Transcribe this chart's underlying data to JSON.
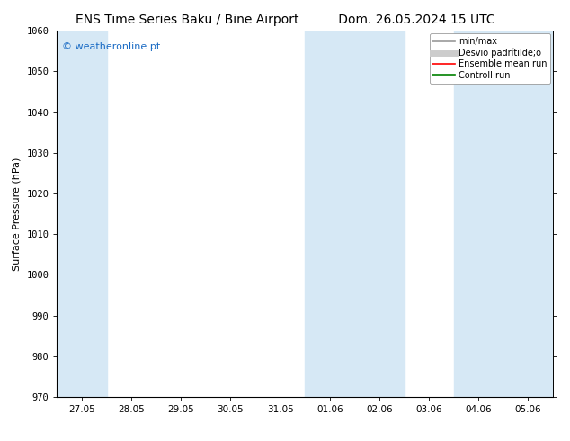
{
  "title_left": "ENS Time Series Baku / Bine Airport",
  "title_right": "Dom. 26.05.2024 15 UTC",
  "ylabel": "Surface Pressure (hPa)",
  "ylim": [
    970,
    1060
  ],
  "yticks": [
    970,
    980,
    990,
    1000,
    1010,
    1020,
    1030,
    1040,
    1050,
    1060
  ],
  "xtick_labels": [
    "27.05",
    "28.05",
    "29.05",
    "30.05",
    "31.05",
    "01.06",
    "02.06",
    "03.06",
    "04.06",
    "05.06"
  ],
  "shaded_columns": [
    0,
    5,
    6,
    8,
    9
  ],
  "shaded_color": "#d6e8f5",
  "legend_entries": [
    {
      "label": "min/max",
      "color": "#999999",
      "lw": 1.2
    },
    {
      "label": "Desvio padrítilde;o",
      "color": "#cccccc",
      "lw": 5
    },
    {
      "label": "Ensemble mean run",
      "color": "red",
      "lw": 1.2
    },
    {
      "label": "Controll run",
      "color": "green",
      "lw": 1.2
    }
  ],
  "watermark": "© weatheronline.pt",
  "watermark_color": "#1a6bc4",
  "bg_color": "#ffffff",
  "title_fontsize": 10,
  "ylabel_fontsize": 8,
  "tick_fontsize": 7.5,
  "legend_fontsize": 7
}
